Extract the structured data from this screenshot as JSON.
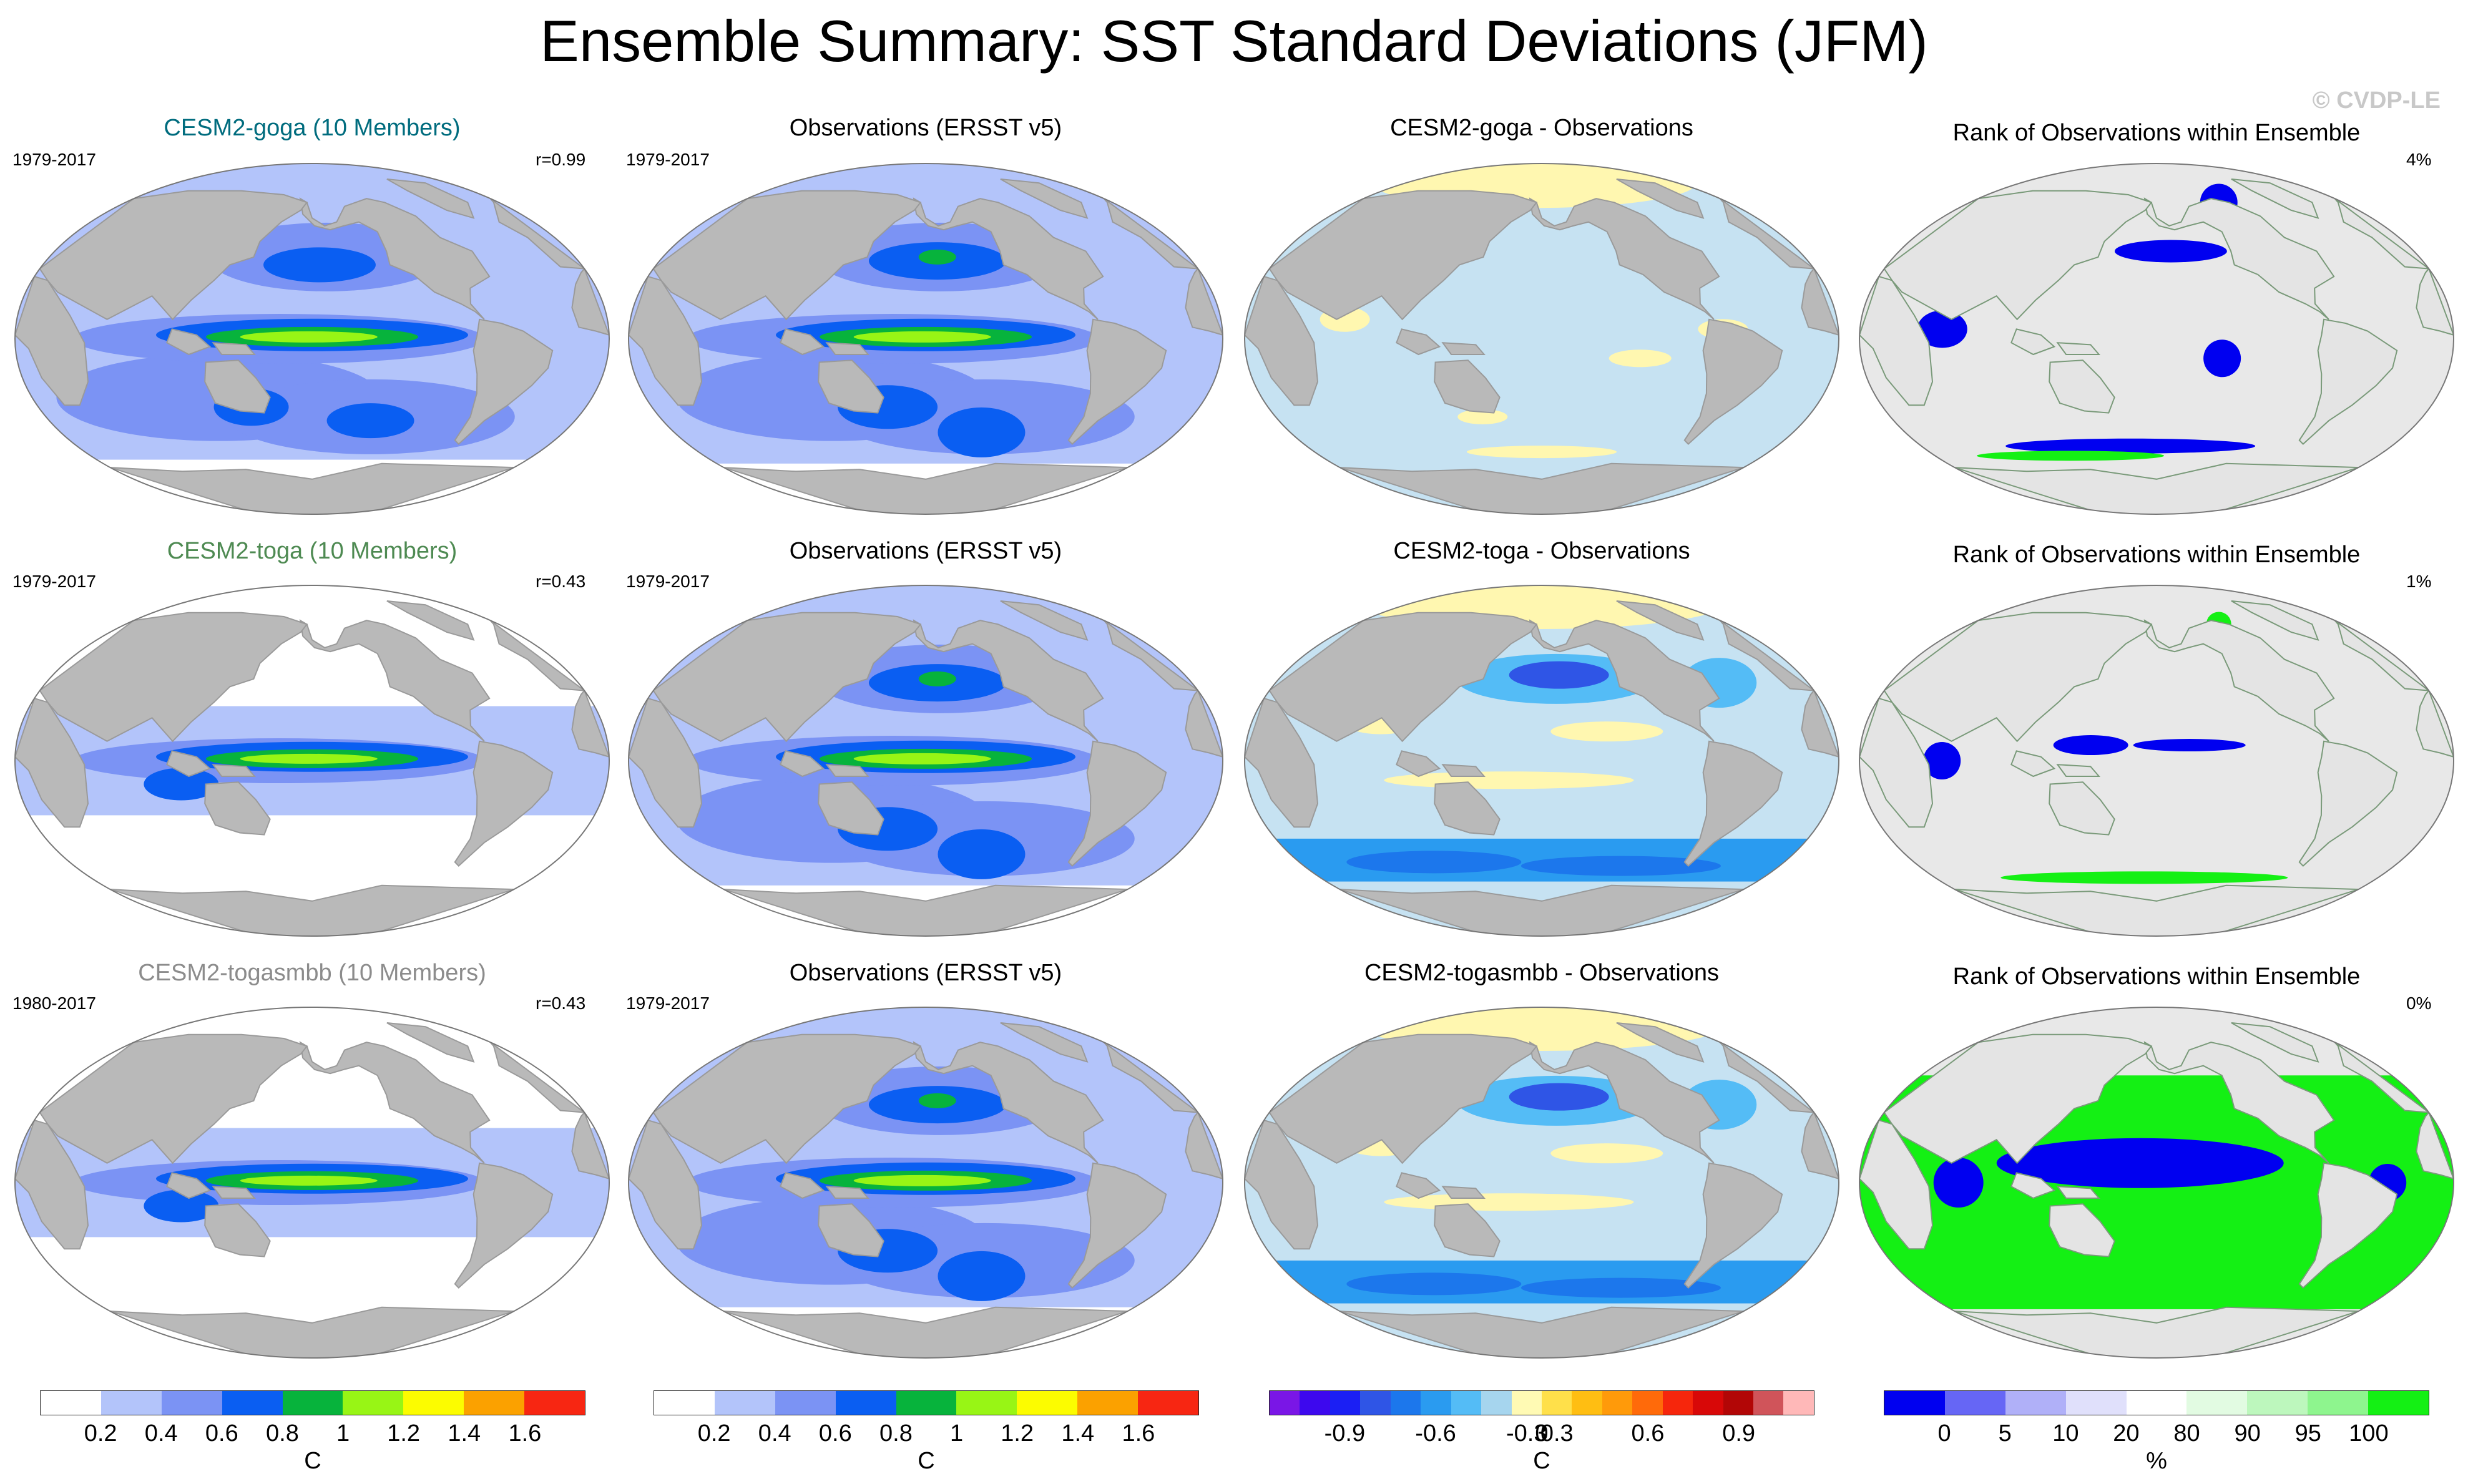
{
  "figure": {
    "title": "Ensemble Summary: SST Standard Deviations (JFM)",
    "credit": "© CVDP-LE"
  },
  "chart_data": {
    "type": "heatmap",
    "rows": [
      {
        "ensemble": {
          "title": "CESM2-goga (10 Members)",
          "title_color": "#006c7e",
          "years": "1979-2017",
          "stat": "r=0.99",
          "pattern": "goga"
        },
        "obs": {
          "title": "Observations (ERSST v5)",
          "years": "1979-2017",
          "pattern": "obs"
        },
        "diff": {
          "title": "CESM2-goga - Observations",
          "pattern": "diff_small"
        },
        "rank": {
          "title": "Rank of Observations within Ensemble",
          "stat": "4%",
          "pattern": "rank_goga"
        }
      },
      {
        "ensemble": {
          "title": "CESM2-toga (10 Members)",
          "title_color": "#4e8a52",
          "years": "1979-2017",
          "stat": "r=0.43",
          "pattern": "toga"
        },
        "obs": {
          "title": "Observations (ERSST v5)",
          "years": "1979-2017",
          "pattern": "obs"
        },
        "diff": {
          "title": "CESM2-toga - Observations",
          "pattern": "diff_big"
        },
        "rank": {
          "title": "Rank of Observations within Ensemble",
          "stat": "1%",
          "pattern": "rank_toga"
        }
      },
      {
        "ensemble": {
          "title": "CESM2-togasmbb (10 Members)",
          "title_color": "#8c8c8c",
          "years": "1980-2017",
          "stat": "r=0.43",
          "pattern": "toga"
        },
        "obs": {
          "title": "Observations (ERSST v5)",
          "years": "1979-2017",
          "pattern": "obs"
        },
        "diff": {
          "title": "CESM2-togasmbb - Observations",
          "pattern": "diff_big"
        },
        "rank": {
          "title": "Rank of Observations within Ensemble",
          "stat": "0%",
          "pattern": "rank_smbb"
        }
      }
    ],
    "colorbars": [
      {
        "unit": "C",
        "colors": [
          "#ffffff",
          "#b3c4fa",
          "#7b93f4",
          "#0a5ef2",
          "#07b33c",
          "#98f515",
          "#fcfc00",
          "#fba100",
          "#f72612"
        ],
        "ticks": [
          "0.2",
          "0.4",
          "0.6",
          "0.8",
          "1",
          "1.2",
          "1.4",
          "1.6"
        ]
      },
      {
        "unit": "C",
        "colors": [
          "#ffffff",
          "#b3c4fa",
          "#7b93f4",
          "#0a5ef2",
          "#07b33c",
          "#98f515",
          "#fcfc00",
          "#fba100",
          "#f72612"
        ],
        "ticks": [
          "0.2",
          "0.4",
          "0.6",
          "0.8",
          "1",
          "1.2",
          "1.4",
          "1.6"
        ]
      },
      {
        "unit": "C",
        "colors": [
          "#7a16e6",
          "#3d08ee",
          "#1b1ff4",
          "#2f55e6",
          "#1c77ec",
          "#2a9bf0",
          "#54bcf6",
          "#a6d5ee",
          "#fffab4",
          "#ffe04a",
          "#ffbe12",
          "#ff9a0a",
          "#ff6a0a",
          "#f6260c",
          "#d80808",
          "#b20606",
          "#d0545a",
          "#ffb8b8"
        ],
        "ticks": [
          "-0.9",
          "-0.6",
          "-0.3",
          "0",
          "0.3",
          "0.6",
          "0.9"
        ]
      },
      {
        "unit": "%",
        "colors": [
          "#0000f0",
          "#6666f5",
          "#b0b0f8",
          "#e0e0fb",
          "#ffffff",
          "#e2fbe2",
          "#bdf7bd",
          "#8ef58e",
          "#14f014"
        ],
        "ticks": [
          "0",
          "5",
          "10",
          "20",
          "80",
          "90",
          "95",
          "100"
        ]
      }
    ]
  }
}
